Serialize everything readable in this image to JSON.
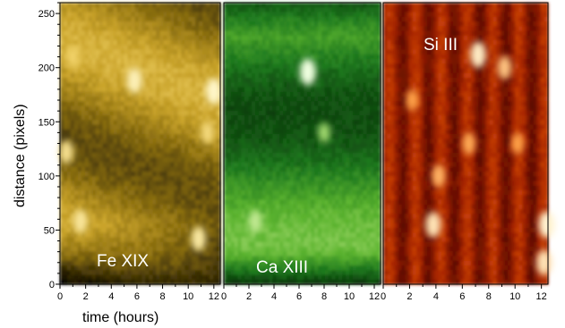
{
  "chart_data": [
    {
      "type": "heatmap",
      "panel_label": "Fe XIX",
      "colormap": [
        "#060400",
        "#3a2e05",
        "#8a6e10",
        "#c9a32a",
        "#f1d267",
        "#fff6c8"
      ],
      "xlabel": "time (hours)",
      "ylabel": "distance (pixels)",
      "xlim": [
        0,
        12.5
      ],
      "ylim": [
        0,
        260
      ],
      "xticks": [
        "0",
        "2",
        "4",
        "6",
        "8",
        "10",
        "12"
      ],
      "yticks": [
        "0",
        "50",
        "100",
        "150",
        "200",
        "250"
      ],
      "bright_features": [
        {
          "x": 5.8,
          "y": 188,
          "intensity": 0.9
        },
        {
          "x": 12.0,
          "y": 178,
          "intensity": 1.0
        },
        {
          "x": 0.5,
          "y": 122,
          "intensity": 0.7
        },
        {
          "x": 1.6,
          "y": 58,
          "intensity": 0.75
        },
        {
          "x": 10.8,
          "y": 42,
          "intensity": 0.8
        },
        {
          "x": 11.5,
          "y": 140,
          "intensity": 0.6
        },
        {
          "x": 1.0,
          "y": 210,
          "intensity": 0.5
        }
      ]
    },
    {
      "type": "heatmap",
      "panel_label": "Ca XIII",
      "colormap": [
        "#000800",
        "#0b3d0b",
        "#1f7a1f",
        "#5cb42f",
        "#b5e47f",
        "#f0ffe0"
      ],
      "xlim": [
        0,
        12.5
      ],
      "ylim": [
        0,
        260
      ],
      "xticks": [
        "0",
        "2",
        "4",
        "6",
        "8",
        "10",
        "12"
      ],
      "bright_features": [
        {
          "x": 6.7,
          "y": 196,
          "intensity": 1.0
        },
        {
          "x": 2.5,
          "y": 58,
          "intensity": 0.6
        },
        {
          "x": 8.0,
          "y": 140,
          "intensity": 0.4
        }
      ]
    },
    {
      "type": "heatmap",
      "panel_label": "Si III",
      "colormap": [
        "#180000",
        "#5a0a00",
        "#a32300",
        "#e0520c",
        "#ffa34a",
        "#fff3d0"
      ],
      "xlim": [
        0,
        12.5
      ],
      "ylim": [
        0,
        260
      ],
      "xticks": [
        "0",
        "2",
        "4",
        "6",
        "8",
        "10",
        "12"
      ],
      "bright_features": [
        {
          "x": 7.2,
          "y": 212,
          "intensity": 0.95
        },
        {
          "x": 9.2,
          "y": 200,
          "intensity": 0.7
        },
        {
          "x": 3.8,
          "y": 55,
          "intensity": 0.9
        },
        {
          "x": 12.4,
          "y": 55,
          "intensity": 1.0
        },
        {
          "x": 12.2,
          "y": 20,
          "intensity": 0.9
        },
        {
          "x": 2.2,
          "y": 170,
          "intensity": 0.5
        },
        {
          "x": 6.5,
          "y": 130,
          "intensity": 0.55
        },
        {
          "x": 10.2,
          "y": 130,
          "intensity": 0.5
        },
        {
          "x": 4.2,
          "y": 100,
          "intensity": 0.6
        }
      ]
    }
  ]
}
